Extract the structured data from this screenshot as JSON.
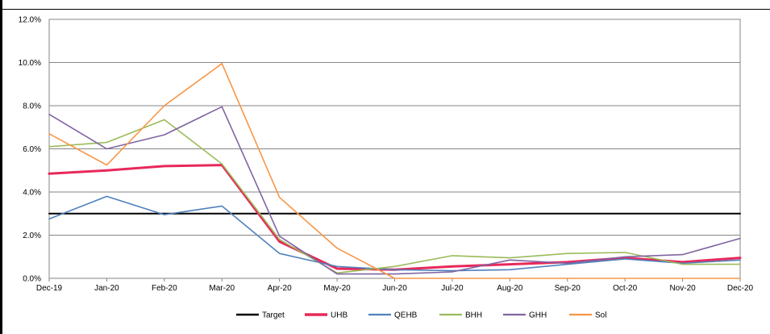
{
  "chart_data": {
    "type": "line",
    "title": "",
    "categories": [
      "Dec-19",
      "Jan-20",
      "Feb-20",
      "Mar-20",
      "Apr-20",
      "May-20",
      "Jun-20",
      "Jul-20",
      "Aug-20",
      "Sep-20",
      "Oct-20",
      "Nov-20",
      "Dec-20"
    ],
    "y_tick_labels": [
      "0.0%",
      "2.0%",
      "4.0%",
      "6.0%",
      "8.0%",
      "10.0%",
      "12.0%"
    ],
    "ylim": [
      0,
      12
    ],
    "grid": true,
    "legend_position": "bottom",
    "series": [
      {
        "name": "Target",
        "color": "#000000",
        "width": 2,
        "values": [
          3.0,
          3.0,
          3.0,
          3.0,
          3.0,
          3.0,
          3.0,
          3.0,
          3.0,
          3.0,
          3.0,
          3.0,
          3.0
        ]
      },
      {
        "name": "UHB",
        "color": "#e8285a",
        "width": 3,
        "values": [
          4.85,
          5.0,
          5.2,
          5.25,
          1.7,
          0.45,
          0.4,
          0.55,
          0.65,
          0.75,
          0.95,
          0.75,
          0.95
        ]
      },
      {
        "name": "QEHB",
        "color": "#4f81bd",
        "width": 1.6,
        "values": [
          2.75,
          3.8,
          2.95,
          3.35,
          1.15,
          0.55,
          0.4,
          0.35,
          0.4,
          0.65,
          0.9,
          0.7,
          0.85
        ]
      },
      {
        "name": "BHH",
        "color": "#9bbb59",
        "width": 1.6,
        "values": [
          6.1,
          6.3,
          7.35,
          5.3,
          1.8,
          0.25,
          0.55,
          1.05,
          0.95,
          1.15,
          1.2,
          0.65,
          0.65
        ]
      },
      {
        "name": "GHH",
        "color": "#8064a2",
        "width": 1.6,
        "values": [
          7.6,
          6.0,
          6.65,
          7.95,
          1.95,
          0.2,
          0.2,
          0.3,
          0.85,
          0.7,
          1.0,
          1.1,
          1.85
        ]
      },
      {
        "name": "Sol",
        "color": "#f79646",
        "width": 1.6,
        "values": [
          6.7,
          5.25,
          8.0,
          9.95,
          3.75,
          1.4,
          0.0,
          0.0,
          0.0,
          0.0,
          0.0,
          0.0,
          0.0
        ]
      }
    ]
  }
}
